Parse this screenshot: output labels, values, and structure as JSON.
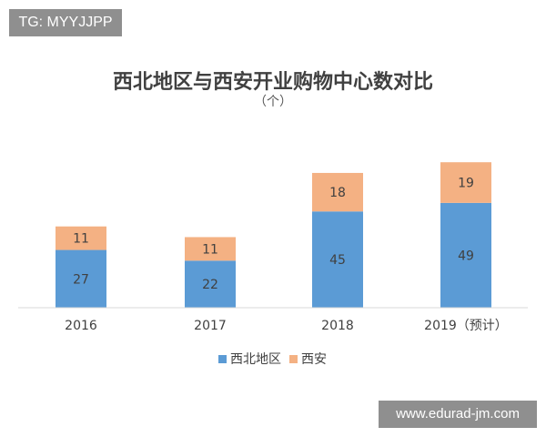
{
  "watermark_top": "TG: MYYJJPP",
  "watermark_bottom": "www.edurad-jm.com",
  "chart_data": {
    "type": "bar",
    "stacked": true,
    "title": "西北地区与西安开业购物中心数对比",
    "subtitle": "（个）",
    "categories": [
      "2016",
      "2017",
      "2018",
      "2019（预计）"
    ],
    "series": [
      {
        "name": "西北地区",
        "color": "#5b9bd5",
        "values": [
          27,
          22,
          45,
          49
        ]
      },
      {
        "name": "西安",
        "color": "#f4b183",
        "values": [
          11,
          11,
          18,
          19
        ]
      }
    ],
    "ylim": [
      0,
      70
    ],
    "grid": false,
    "legend_position": "bottom"
  }
}
